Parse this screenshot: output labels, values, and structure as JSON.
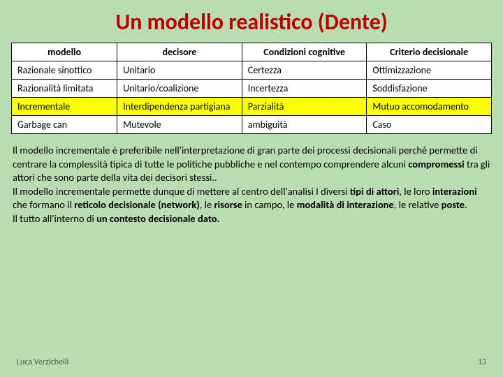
{
  "title": "Un modello realistico (Dente)",
  "table": {
    "columns": [
      "modello",
      "decisore",
      "Condizioni cognitive",
      "Criterio decisionale"
    ],
    "rows": [
      {
        "cells": [
          "Razionale sinottico",
          "Unitario",
          "Certezza",
          "Ottimizzazione"
        ],
        "highlight": false
      },
      {
        "cells": [
          "Razionalità limitata",
          "Unitario/coalizione",
          "Incertezza",
          "Soddisfazione"
        ],
        "highlight": false
      },
      {
        "cells": [
          "Incrementale",
          "Interdipendenza partigiana",
          "Parzialità",
          "Mutuo accomodamento"
        ],
        "highlight": true
      },
      {
        "cells": [
          "Garbage can",
          "Mutevole",
          "ambiguità",
          "Caso"
        ],
        "highlight": false
      }
    ]
  },
  "body": {
    "p1a": "Il modello  incrementale è preferibile nell'interpretazione di gran parte dei processi decisionali perchè permette di centrare  la complessità tipica di tutte le politiche pubbliche e nel contempo comprendere alcuni ",
    "p1b": "compromessi",
    "p1c": " tra gli attori che sono parte della vita dei decisori stessi..",
    "p2a": "Il modello incrementale permette dunque di mettere al centro dell'analisi I diversi ",
    "p2b": "tipi di attori",
    "p2c": ", le loro ",
    "p2d": "interazioni",
    "p2e": " che formano il ",
    "p2f": "reticolo decisionale (network)",
    "p2g": ", le ",
    "p2h": "risorse",
    "p2i": " in campo, le ",
    "p2j": "modalità di interazione",
    "p2k": ", le relative ",
    "p2l": "poste",
    "p2m": ".",
    "p3a": "Il tutto all'interno di ",
    "p3b": "un contesto decisionale dato.",
    "p3c": ""
  },
  "footer": {
    "author": "Luca Verzichelli",
    "page": "13"
  }
}
